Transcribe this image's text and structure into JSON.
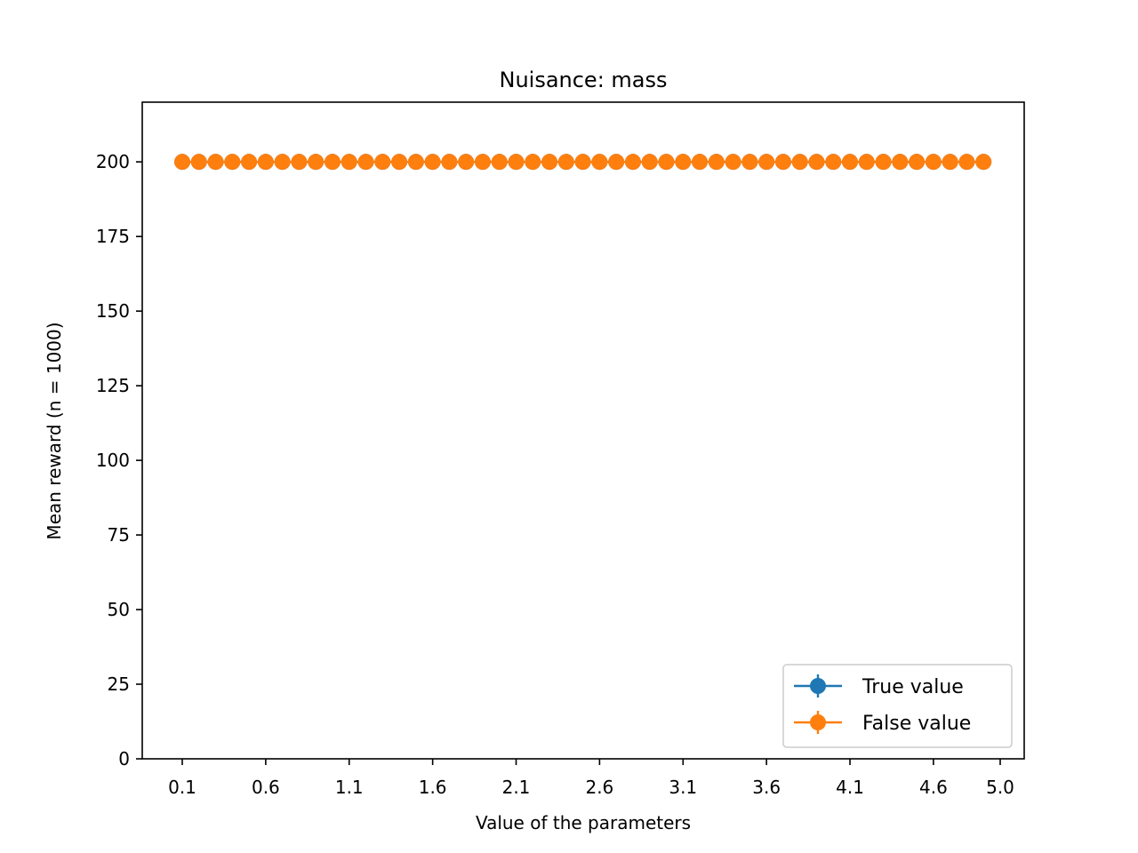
{
  "chart_data": {
    "type": "line",
    "title": "Nuisance: mass",
    "xlabel": "Value of the parameters",
    "ylabel": "Mean reward (n = 1000)",
    "xlim": [
      0.1,
      5.0
    ],
    "ylim": [
      0,
      220
    ],
    "x_ticks": [
      0.1,
      0.6,
      1.1,
      1.6,
      2.1,
      2.6,
      3.1,
      3.6,
      4.1,
      4.6,
      5.0
    ],
    "y_ticks": [
      0,
      25,
      50,
      75,
      100,
      125,
      150,
      175,
      200
    ],
    "grid": false,
    "legend_position": "lower-right",
    "x": [
      0.1,
      0.2,
      0.3,
      0.4,
      0.5,
      0.6,
      0.7,
      0.8,
      0.9,
      1.0,
      1.1,
      1.2,
      1.3,
      1.4,
      1.5,
      1.6,
      1.7,
      1.8,
      1.9,
      2.0,
      2.1,
      2.2,
      2.3,
      2.4,
      2.5,
      2.6,
      2.7,
      2.8,
      2.9,
      3.0,
      3.1,
      3.2,
      3.3,
      3.4,
      3.5,
      3.6,
      3.7,
      3.8,
      3.9,
      4.0,
      4.1,
      4.2,
      4.3,
      4.4,
      4.5,
      4.6,
      4.7,
      4.8,
      4.9
    ],
    "series": [
      {
        "name": "True value",
        "color": "#1f77b4",
        "values": [
          200,
          200,
          200,
          200,
          200,
          200,
          200,
          200,
          200,
          200,
          200,
          200,
          200,
          200,
          200,
          200,
          200,
          200,
          200,
          200,
          200,
          200,
          200,
          200,
          200,
          200,
          200,
          200,
          200,
          200,
          200,
          200,
          200,
          200,
          200,
          200,
          200,
          200,
          200,
          200,
          200,
          200,
          200,
          200,
          200,
          200,
          200,
          200,
          200
        ],
        "errors": [
          0,
          0,
          0,
          0,
          0,
          0,
          0,
          0,
          0,
          0,
          0,
          0,
          0,
          0,
          0,
          0,
          0,
          0,
          0,
          0,
          0,
          0,
          0,
          0,
          0,
          0,
          0,
          0,
          0,
          0,
          0,
          0,
          0,
          0,
          0,
          0,
          0,
          0,
          0,
          0,
          0,
          0,
          0,
          0,
          0,
          0,
          0,
          0,
          0
        ]
      },
      {
        "name": "False value",
        "color": "#ff7f0e",
        "values": [
          200,
          200,
          200,
          200,
          200,
          200,
          200,
          200,
          200,
          200,
          200,
          200,
          200,
          200,
          200,
          200,
          200,
          200,
          200,
          200,
          200,
          200,
          200,
          200,
          200,
          200,
          200,
          200,
          200,
          200,
          200,
          200,
          200,
          200,
          200,
          200,
          200,
          200,
          200,
          200,
          200,
          200,
          200,
          200,
          200,
          200,
          200,
          200,
          200
        ],
        "errors": [
          0,
          0,
          0,
          0,
          0,
          0,
          0,
          0,
          0,
          0,
          0,
          0,
          0,
          0,
          0,
          0,
          0,
          0,
          0,
          0,
          0,
          0,
          0,
          0,
          0,
          0,
          0,
          0,
          0,
          0,
          0,
          0,
          0,
          0,
          0,
          0,
          0,
          0,
          0,
          0,
          0,
          0,
          0,
          0,
          0,
          0,
          0,
          0,
          0
        ]
      }
    ]
  }
}
